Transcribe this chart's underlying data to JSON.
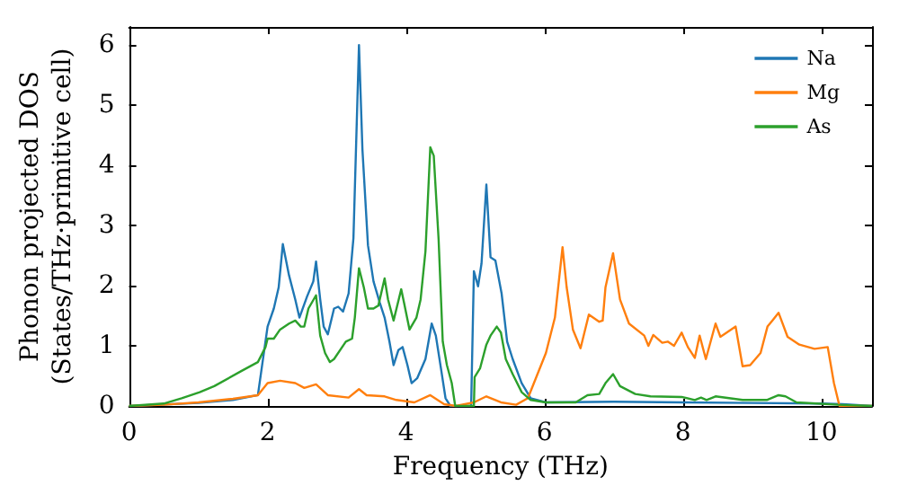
{
  "chart_data": {
    "type": "line",
    "xlabel": "Frequency (THz)",
    "ylabel": "Phonon projected DOS\n(States/THz·primitive cell)",
    "xlim": [
      0,
      10.73
    ],
    "xticks": [
      0,
      2,
      4,
      6,
      8,
      10
    ],
    "ylim": [
      0,
      6.3
    ],
    "yticks": [
      0,
      1,
      2,
      3,
      4,
      5,
      6
    ],
    "grid": false,
    "legend": "top right",
    "marker": "none",
    "line_style": "solid",
    "series": [
      {
        "name": "Na",
        "color": "#1f77b4",
        "x": [
          0,
          1,
          1.5,
          1.86,
          2.0,
          2.09,
          2.16,
          2.22,
          2.31,
          2.4,
          2.46,
          2.57,
          2.66,
          2.7,
          2.76,
          2.81,
          2.87,
          2.96,
          3.02,
          3.09,
          3.17,
          3.24,
          3.32,
          3.37,
          3.45,
          3.53,
          3.62,
          3.69,
          3.76,
          3.82,
          3.89,
          3.95,
          4.02,
          4.08,
          4.16,
          4.28,
          4.37,
          4.43,
          4.51,
          4.57,
          4.64,
          4.94,
          4.98,
          5.04,
          5.09,
          5.16,
          5.22,
          5.29,
          5.38,
          5.46,
          5.54,
          5.67,
          5.8,
          6.02,
          7,
          8,
          9,
          10,
          10.3,
          10.73
        ],
        "values": [
          0,
          0.05,
          0.1,
          0.18,
          1.32,
          1.62,
          1.97,
          2.69,
          2.17,
          1.77,
          1.47,
          1.82,
          2.07,
          2.4,
          1.77,
          1.32,
          1.19,
          1.62,
          1.65,
          1.57,
          1.87,
          2.79,
          6.0,
          4.26,
          2.67,
          2.07,
          1.72,
          1.47,
          1.07,
          0.68,
          0.93,
          0.98,
          0.68,
          0.38,
          0.46,
          0.78,
          1.37,
          1.17,
          0.58,
          0.13,
          0,
          0,
          2.24,
          1.99,
          2.37,
          3.68,
          2.47,
          2.42,
          1.87,
          1.07,
          0.78,
          0.38,
          0.13,
          0.06,
          0.07,
          0.06,
          0.05,
          0.04,
          0.03,
          0
        ]
      },
      {
        "name": "Mg",
        "color": "#ff7f0e",
        "x": [
          0,
          0.5,
          1,
          1.5,
          1.86,
          2.0,
          2.18,
          2.4,
          2.53,
          2.7,
          2.87,
          3.17,
          3.32,
          3.43,
          3.69,
          3.86,
          4.12,
          4.35,
          4.55,
          4.72,
          4.98,
          5.16,
          5.37,
          5.59,
          5.76,
          6.02,
          6.15,
          6.26,
          6.32,
          6.41,
          6.52,
          6.64,
          6.79,
          6.84,
          6.88,
          6.99,
          7.09,
          7.22,
          7.44,
          7.5,
          7.57,
          7.7,
          7.78,
          7.87,
          7.98,
          8.07,
          8.17,
          8.24,
          8.33,
          8.47,
          8.54,
          8.76,
          8.86,
          8.97,
          9.12,
          9.22,
          9.29,
          9.38,
          9.51,
          9.68,
          9.9,
          10.09,
          10.18,
          10.26,
          10.73
        ],
        "values": [
          0,
          0.02,
          0.06,
          0.12,
          0.18,
          0.38,
          0.42,
          0.38,
          0.3,
          0.36,
          0.18,
          0.14,
          0.28,
          0.18,
          0.16,
          0.1,
          0.06,
          0.18,
          0.03,
          0,
          0.06,
          0.16,
          0.06,
          0.02,
          0.13,
          0.88,
          1.47,
          2.64,
          1.97,
          1.27,
          0.96,
          1.52,
          1.4,
          1.42,
          1.97,
          2.54,
          1.77,
          1.37,
          1.17,
          1.0,
          1.18,
          1.05,
          1.07,
          1.0,
          1.22,
          0.98,
          0.8,
          1.17,
          0.78,
          1.37,
          1.15,
          1.32,
          0.66,
          0.68,
          0.88,
          1.32,
          1.42,
          1.55,
          1.15,
          1.02,
          0.95,
          0.98,
          0.38,
          0,
          0
        ]
      },
      {
        "name": "As",
        "color": "#2ca02c",
        "x": [
          0,
          0.5,
          0.76,
          1.02,
          1.23,
          1.62,
          1.86,
          1.97,
          2.0,
          2.09,
          2.18,
          2.31,
          2.4,
          2.48,
          2.53,
          2.59,
          2.7,
          2.76,
          2.83,
          2.9,
          2.96,
          3.13,
          3.22,
          3.26,
          3.32,
          3.39,
          3.45,
          3.53,
          3.6,
          3.69,
          3.74,
          3.82,
          3.93,
          3.97,
          4.05,
          4.15,
          4.21,
          4.28,
          4.35,
          4.4,
          4.47,
          4.53,
          4.59,
          4.66,
          4.71,
          4.98,
          4.99,
          5.07,
          5.16,
          5.22,
          5.31,
          5.37,
          5.44,
          5.54,
          5.67,
          5.8,
          6.02,
          6.45,
          6.62,
          6.79,
          6.88,
          6.99,
          7.09,
          7.31,
          7.53,
          7.98,
          8.17,
          8.26,
          8.34,
          8.47,
          8.86,
          9.21,
          9.38,
          9.48,
          9.64,
          10.24,
          10.73
        ],
        "values": [
          0,
          0.04,
          0.13,
          0.23,
          0.33,
          0.58,
          0.73,
          0.98,
          1.12,
          1.12,
          1.27,
          1.37,
          1.42,
          1.32,
          1.32,
          1.62,
          1.84,
          1.17,
          0.88,
          0.73,
          0.78,
          1.07,
          1.12,
          1.47,
          2.29,
          1.97,
          1.62,
          1.62,
          1.67,
          2.12,
          1.77,
          1.42,
          1.94,
          1.72,
          1.27,
          1.47,
          1.77,
          2.57,
          4.3,
          4.16,
          2.77,
          1.07,
          0.68,
          0.38,
          0,
          0,
          0.48,
          0.63,
          1.02,
          1.17,
          1.32,
          1.22,
          0.78,
          0.53,
          0.23,
          0.1,
          0.06,
          0.06,
          0.18,
          0.2,
          0.38,
          0.53,
          0.33,
          0.2,
          0.16,
          0.15,
          0.1,
          0.14,
          0.1,
          0.16,
          0.1,
          0.1,
          0.18,
          0.16,
          0.06,
          0.02,
          0
        ]
      }
    ]
  }
}
